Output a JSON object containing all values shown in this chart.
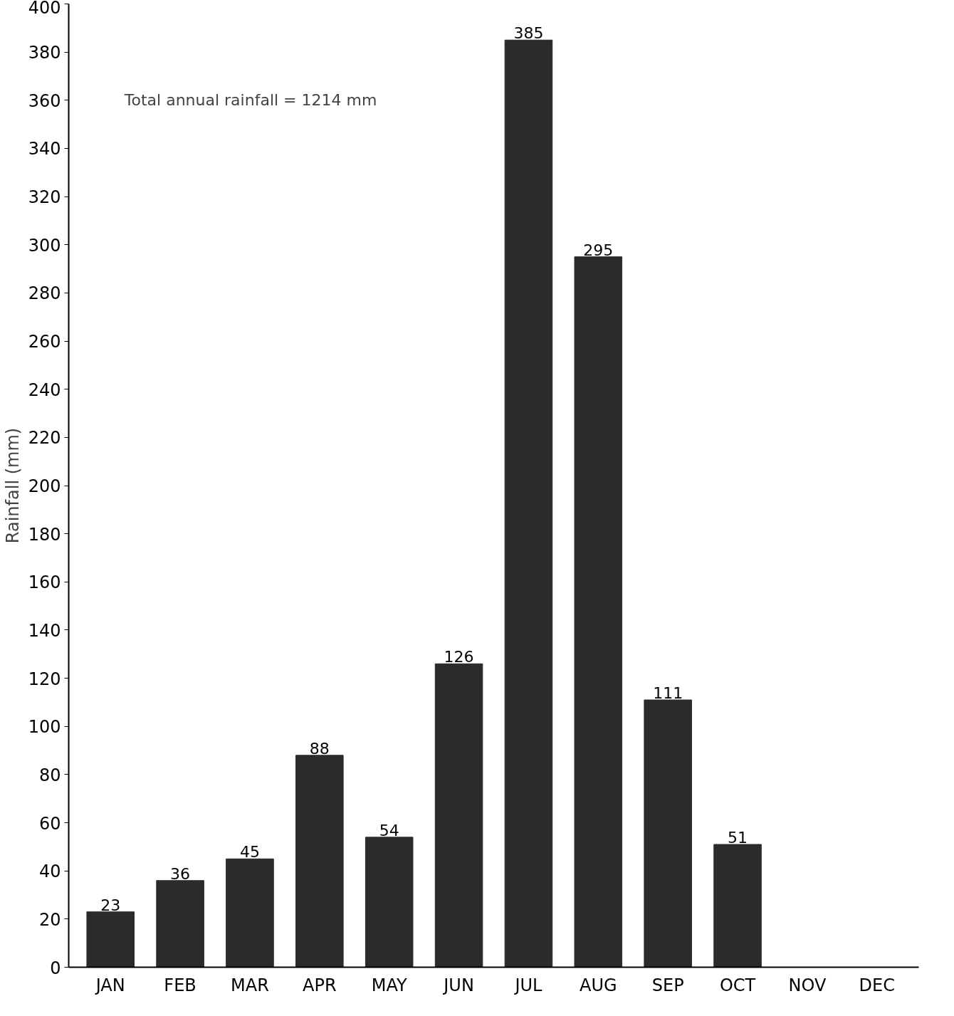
{
  "chart_data": {
    "type": "bar",
    "ylabel": "Rainfall (mm)",
    "categories": [
      "JAN",
      "FEB",
      "MAR",
      "APR",
      "MAY",
      "JUN",
      "JUL",
      "AUG",
      "SEP",
      "OCT",
      "NOV",
      "DEC"
    ],
    "values": [
      23,
      36,
      45,
      88,
      54,
      126,
      385,
      295,
      111,
      51,
      null,
      null
    ],
    "color": "#2b2b2b",
    "ylim": [
      0,
      400
    ],
    "yticks": [
      0,
      20,
      40,
      60,
      80,
      100,
      120,
      140,
      160,
      180,
      200,
      220,
      240,
      260,
      280,
      300,
      320,
      340,
      360,
      380,
      400
    ],
    "data_labels": true,
    "grid": false,
    "annotations": [
      "Total annual rainfall = 1214 mm"
    ]
  }
}
